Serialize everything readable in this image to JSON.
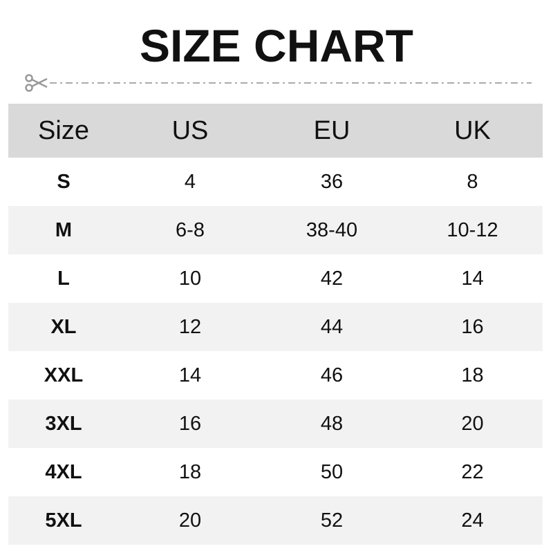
{
  "title": "SIZE CHART",
  "cut_icon": "scissors-icon",
  "colors": {
    "header_bg": "#d9d9d9",
    "alt_row_bg": "#f2f2f2",
    "line": "#aaaaaa"
  },
  "table": {
    "headers": [
      "Size",
      "US",
      "EU",
      "UK"
    ],
    "rows": [
      [
        "S",
        "4",
        "36",
        "8"
      ],
      [
        "M",
        "6-8",
        "38-40",
        "10-12"
      ],
      [
        "L",
        "10",
        "42",
        "14"
      ],
      [
        "XL",
        "12",
        "44",
        "16"
      ],
      [
        "XXL",
        "14",
        "46",
        "18"
      ],
      [
        "3XL",
        "16",
        "48",
        "20"
      ],
      [
        "4XL",
        "18",
        "50",
        "22"
      ],
      [
        "5XL",
        "20",
        "52",
        "24"
      ]
    ]
  }
}
